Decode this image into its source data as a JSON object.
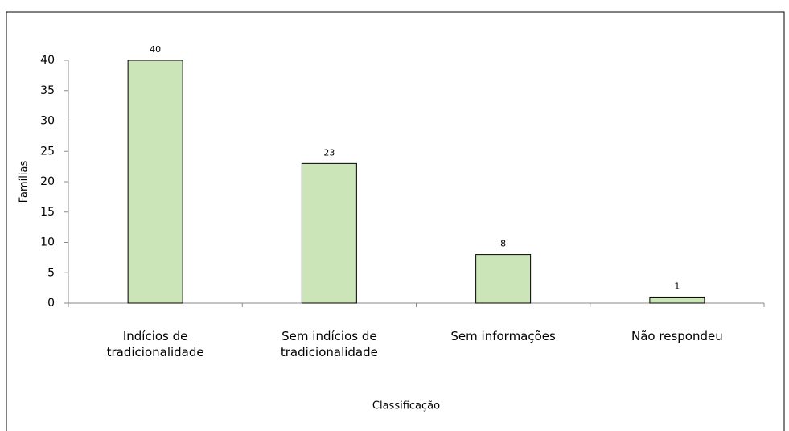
{
  "chart_data": {
    "type": "bar",
    "categories": [
      "Indícios de tradicionalidade",
      "Sem indícios de tradicionalidade",
      "Sem informações",
      "Não respondeu"
    ],
    "values": [
      40,
      23,
      8,
      1
    ],
    "color": "#cce5b8",
    "xlabel": "Classificação",
    "ylabel": "Famílias",
    "ylim": [
      0,
      40
    ],
    "yticks": [
      0,
      5,
      10,
      15,
      20,
      25,
      30,
      35,
      40
    ],
    "grid": false
  }
}
